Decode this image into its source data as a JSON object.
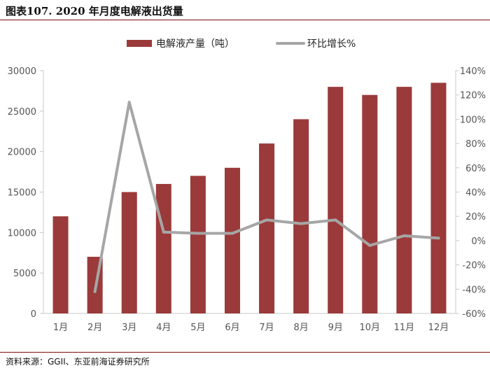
{
  "title": "图表107. 2020 年月度电解液出货量",
  "source": "资料来源：GGII、东亚前海证券研究所",
  "colors": {
    "bar": "#9b3a3a",
    "line": "#a6a6a6",
    "rule": "#7a0d0d"
  },
  "chart_data": {
    "type": "bar",
    "categories": [
      "1月",
      "2月",
      "3月",
      "4月",
      "5月",
      "6月",
      "7月",
      "8月",
      "9月",
      "10月",
      "11月",
      "12月"
    ],
    "series": [
      {
        "name": "电解液产量（吨）",
        "type": "bar",
        "axis": "left",
        "values": [
          12000,
          7000,
          15000,
          16000,
          17000,
          18000,
          21000,
          24000,
          28000,
          27000,
          28000,
          28500
        ]
      },
      {
        "name": "环比增长%",
        "type": "line",
        "axis": "right",
        "values": [
          null,
          -42,
          114,
          7,
          6,
          6,
          17,
          14,
          17,
          -4,
          4,
          2
        ]
      }
    ],
    "ylim": [
      0,
      30000
    ],
    "yticks": [
      0,
      5000,
      10000,
      15000,
      20000,
      25000,
      30000
    ],
    "y2lim": [
      -60,
      140
    ],
    "y2ticks": [
      "-60%",
      "-40%",
      "-20%",
      "0%",
      "20%",
      "40%",
      "60%",
      "80%",
      "100%",
      "120%",
      "140%"
    ],
    "legend_position": "top-center",
    "grid": false
  }
}
